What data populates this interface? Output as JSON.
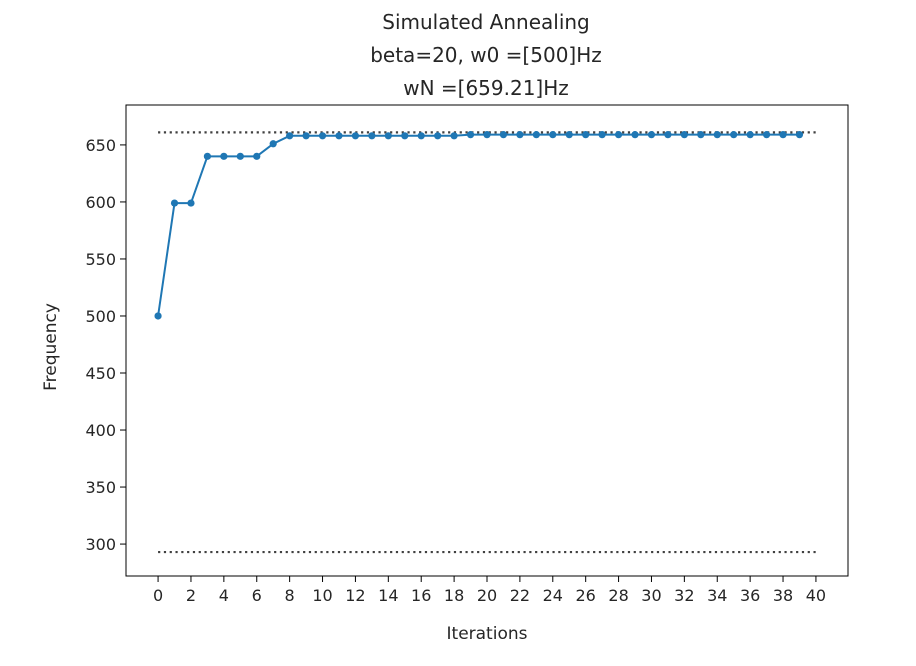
{
  "chart_data": {
    "type": "line",
    "title": [
      "Simulated Annealing",
      "beta=20, w0 =[500]Hz",
      "wN =[659.21]Hz"
    ],
    "xlabel": "Iterations",
    "ylabel": "Frequency",
    "xlim": [
      -1.95,
      41.95
    ],
    "ylim": [
      272,
      685
    ],
    "xticks": [
      0,
      2,
      4,
      6,
      8,
      10,
      12,
      14,
      16,
      18,
      20,
      22,
      24,
      26,
      28,
      30,
      32,
      34,
      36,
      38,
      40
    ],
    "yticks": [
      300,
      350,
      400,
      450,
      500,
      550,
      600,
      650
    ],
    "grid": false,
    "series": [
      {
        "color": "#1f77b4",
        "marker": "dot",
        "x": [
          0,
          1,
          2,
          3,
          4,
          5,
          6,
          7,
          8,
          9,
          10,
          11,
          12,
          13,
          14,
          15,
          16,
          17,
          18,
          19,
          20,
          21,
          22,
          23,
          24,
          25,
          26,
          27,
          28,
          29,
          30,
          31,
          32,
          33,
          34,
          35,
          36,
          37,
          38,
          39
        ],
        "y": [
          500,
          599,
          599,
          640,
          640,
          640,
          640,
          651,
          658,
          658,
          658,
          658,
          658,
          658,
          658,
          658,
          658,
          658,
          658,
          659,
          659,
          659,
          659,
          659,
          659,
          659,
          659,
          659,
          659,
          659,
          659,
          659,
          659,
          659,
          659,
          659,
          659,
          659,
          659,
          659
        ]
      }
    ],
    "reference_lines": [
      {
        "y": 661,
        "x_range": [
          0,
          40
        ],
        "style": "dotted",
        "color": "#404040"
      },
      {
        "y": 293,
        "x_range": [
          0,
          40
        ],
        "style": "dotted",
        "color": "#404040"
      }
    ]
  }
}
